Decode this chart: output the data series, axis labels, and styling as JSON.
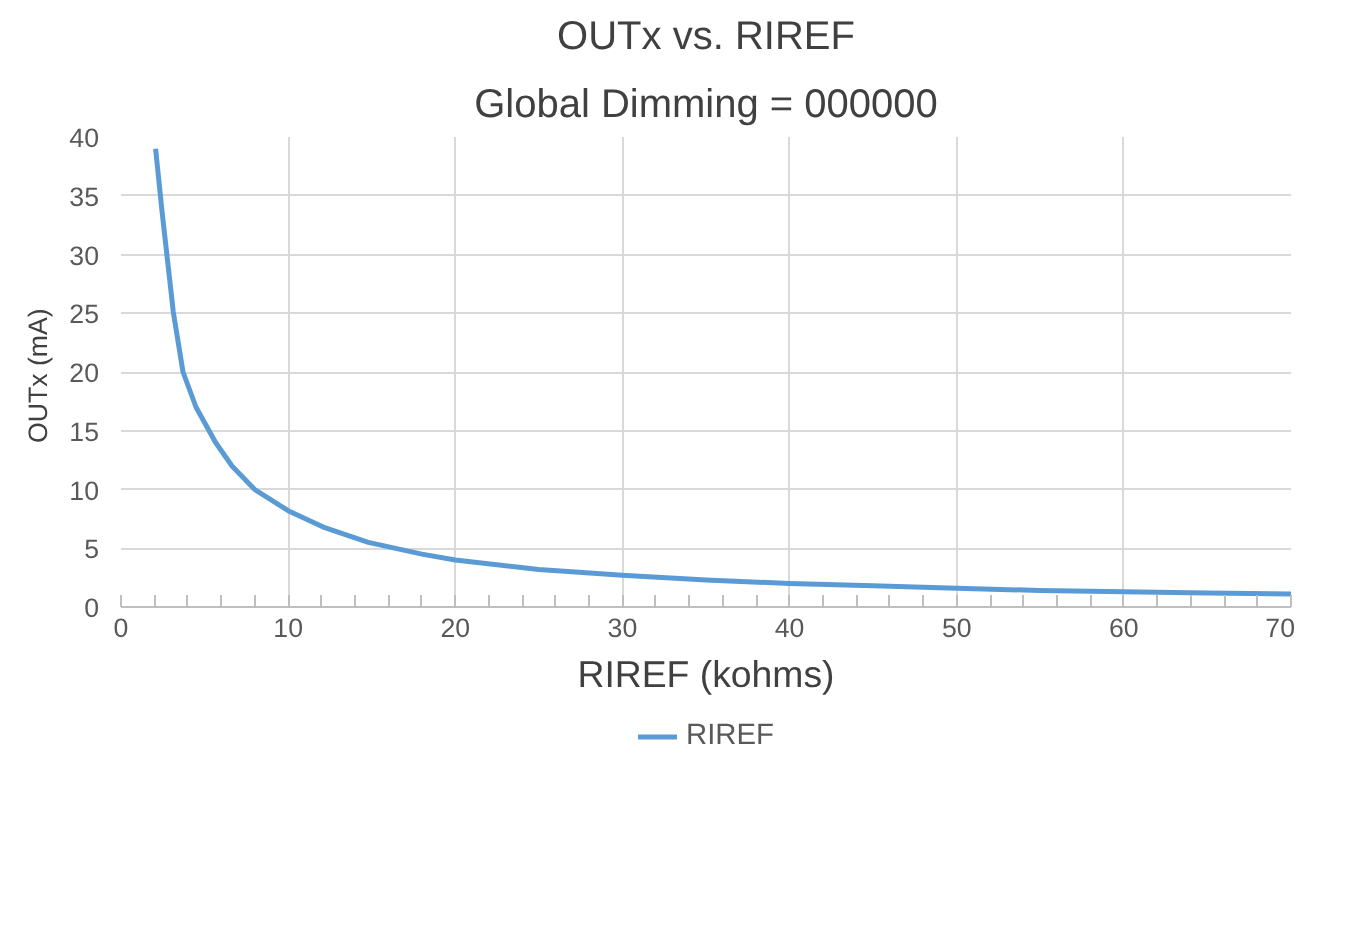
{
  "chart_data": {
    "type": "line",
    "title": "OUTx vs. RIREF",
    "subtitle": "Global Dimming = 000000",
    "xlabel": "RIREF (kohms)",
    "ylabel": "OUTx  (mA)",
    "x": [
      2.07,
      2.46,
      3.13,
      3.71,
      4.49,
      5.66,
      6.64,
      8.0,
      10,
      12.1,
      14.8,
      18.0,
      20,
      25,
      30,
      35,
      40,
      45,
      50,
      55,
      60,
      65,
      70
    ],
    "series": [
      {
        "name": "RIREF",
        "color": "#5b9bd5",
        "values": [
          39.0,
          33.6,
          25.1,
          20.0,
          17.0,
          14.0,
          12.0,
          10.0,
          8.2,
          6.8,
          5.5,
          4.5,
          4.0,
          3.2,
          2.7,
          2.3,
          2.0,
          1.8,
          1.6,
          1.4,
          1.3,
          1.2,
          1.1
        ]
      }
    ],
    "xlim": [
      0,
      70
    ],
    "ylim": [
      0,
      40
    ],
    "xticks": [
      0,
      {
        "value": 2,
        "label": null
      },
      {
        "value": 4,
        "label": null
      },
      {
        "value": 6,
        "label": null
      },
      {
        "value": 8,
        "label": null
      },
      10,
      {
        "value": 12,
        "label": null
      },
      {
        "value": 14,
        "label": null
      },
      {
        "value": 16,
        "label": null
      },
      {
        "value": 18,
        "label": null
      },
      20,
      {
        "value": 22,
        "label": null
      },
      {
        "value": 24,
        "label": null
      },
      {
        "value": 26,
        "label": null
      },
      {
        "value": 28,
        "label": null
      },
      30,
      {
        "value": 32,
        "label": null
      },
      {
        "value": 34,
        "label": null
      },
      {
        "value": 36,
        "label": null
      },
      {
        "value": 38,
        "label": null
      },
      40,
      {
        "value": 42,
        "label": null
      },
      {
        "value": 44,
        "label": null
      },
      {
        "value": 46,
        "label": null
      },
      {
        "value": 48,
        "label": null
      },
      50,
      {
        "value": 52,
        "label": null
      },
      {
        "value": 54,
        "label": null
      },
      {
        "value": 56,
        "label": null
      },
      {
        "value": 58,
        "label": null
      },
      60,
      {
        "value": 62,
        "label": null
      },
      {
        "value": 64,
        "label": null
      },
      {
        "value": 66,
        "label": null
      },
      {
        "value": 68,
        "label": null
      },
      70
    ],
    "yticks": [
      0,
      5,
      10,
      15,
      20,
      25,
      30,
      35,
      40
    ],
    "grid": true,
    "legend": "bottom",
    "line_style": "solid"
  }
}
